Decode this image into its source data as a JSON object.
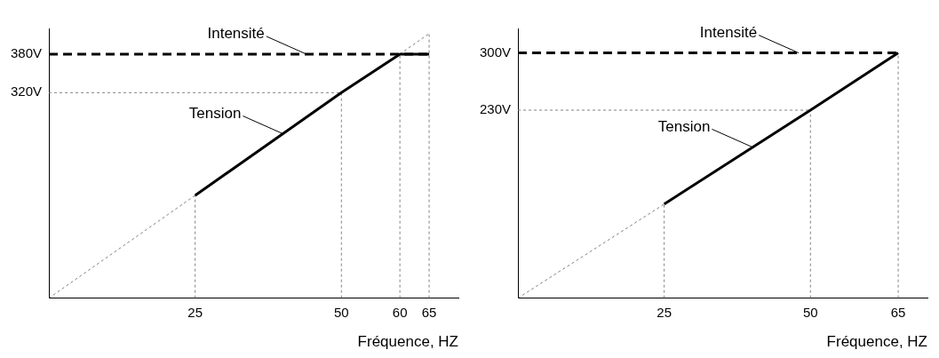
{
  "chart_data": [
    {
      "type": "line",
      "xlabel": "Fréquence, HZ",
      "xlim": [
        0,
        70
      ],
      "ylim": [
        0,
        420
      ],
      "xticks": [
        25,
        50,
        60,
        65
      ],
      "yticks": [
        {
          "value": 320,
          "label": "320V"
        },
        {
          "value": 380,
          "label": "380V"
        }
      ],
      "grid": false,
      "legend": false,
      "marker": "none",
      "series": [
        {
          "color": "#000000",
          "line_style": "solid",
          "x": [
            25,
            50,
            60,
            65
          ],
          "values": [
            160,
            320,
            380,
            380
          ]
        },
        {
          "color": "#000000",
          "line_style": "dashed",
          "x": [
            0,
            65
          ],
          "values": [
            380,
            380
          ]
        },
        {
          "color": "#808080",
          "line_style": "dotted",
          "x": [
            0,
            25
          ],
          "values": [
            0,
            160
          ]
        },
        {
          "color": "#808080",
          "line_style": "dotted",
          "x": [
            60,
            65
          ],
          "values": [
            380,
            412
          ]
        },
        {
          "color": "#808080",
          "line_style": "dotted",
          "x": [
            25,
            25
          ],
          "values": [
            0,
            160
          ]
        },
        {
          "color": "#808080",
          "line_style": "dotted",
          "x": [
            50,
            50
          ],
          "values": [
            0,
            320
          ]
        },
        {
          "color": "#808080",
          "line_style": "dotted",
          "x": [
            60,
            60
          ],
          "values": [
            0,
            380
          ]
        },
        {
          "color": "#808080",
          "line_style": "dotted",
          "x": [
            65,
            65
          ],
          "values": [
            0,
            412
          ]
        },
        {
          "color": "#808080",
          "line_style": "dotted",
          "x": [
            0,
            50
          ],
          "values": [
            320,
            320
          ]
        }
      ],
      "annotations": [
        {
          "text": "Intensité",
          "x": 44,
          "y": 380
        },
        {
          "text": "Tension",
          "x": 40,
          "y": 256
        }
      ]
    },
    {
      "type": "line",
      "xlabel": "Fréquence, HZ",
      "xlim": [
        0,
        70
      ],
      "ylim": [
        0,
        330
      ],
      "xticks": [
        25,
        50,
        65
      ],
      "yticks": [
        {
          "value": 230,
          "label": "230V"
        },
        {
          "value": 300,
          "label": "300V"
        }
      ],
      "grid": false,
      "legend": false,
      "marker": "none",
      "series": [
        {
          "color": "#000000",
          "line_style": "solid",
          "x": [
            25,
            50,
            65
          ],
          "values": [
            115,
            230,
            300
          ]
        },
        {
          "color": "#000000",
          "line_style": "dashed",
          "x": [
            0,
            65
          ],
          "values": [
            300,
            300
          ]
        },
        {
          "color": "#808080",
          "line_style": "dotted",
          "x": [
            0,
            25
          ],
          "values": [
            0,
            115
          ]
        },
        {
          "color": "#808080",
          "line_style": "dotted",
          "x": [
            25,
            25
          ],
          "values": [
            0,
            115
          ]
        },
        {
          "color": "#808080",
          "line_style": "dotted",
          "x": [
            50,
            50
          ],
          "values": [
            0,
            230
          ]
        },
        {
          "color": "#808080",
          "line_style": "dotted",
          "x": [
            65,
            65
          ],
          "values": [
            0,
            300
          ]
        },
        {
          "color": "#808080",
          "line_style": "dotted",
          "x": [
            0,
            50
          ],
          "values": [
            230,
            230
          ]
        }
      ],
      "annotations": [
        {
          "text": "Intensité",
          "x": 48,
          "y": 300
        },
        {
          "text": "Tension",
          "x": 40,
          "y": 185
        }
      ]
    }
  ]
}
